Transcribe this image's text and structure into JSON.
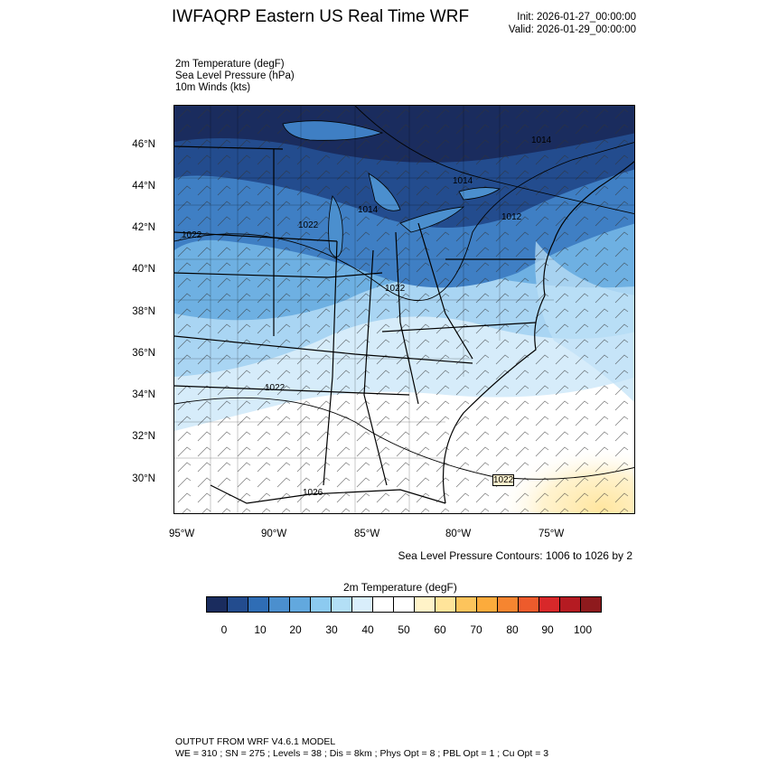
{
  "header": {
    "title": "IWFAQRP Eastern US Real Time WRF",
    "init": "Init: 2026-01-27_00:00:00",
    "valid": "Valid: 2026-01-29_00:00:00"
  },
  "fields": [
    "2m Temperature   (degF)",
    "Sea Level Pressure   (hPa)",
    "10m Winds   (kts)"
  ],
  "map": {
    "lat_labels": [
      "46°N",
      "44°N",
      "42°N",
      "40°N",
      "38°N",
      "36°N",
      "34°N",
      "32°N",
      "30°N"
    ],
    "lon_labels": [
      "95°W",
      "90°W",
      "85°W",
      "80°W",
      "75°W"
    ],
    "pressure_labels": [
      "1014",
      "1014",
      "1014",
      "1012",
      "1022",
      "1022",
      "1022",
      "1026",
      "1022",
      "1022"
    ]
  },
  "contour_note": "Sea Level Pressure Contours: 1006 to 1026 by 2",
  "colorbar": {
    "title": "2m Temperature  (degF)",
    "labels": [
      "0",
      "10",
      "20",
      "30",
      "40",
      "50",
      "60",
      "70",
      "80",
      "90",
      "100"
    ],
    "colors": [
      "#1a2c5e",
      "#234c8e",
      "#2f6db5",
      "#4b8fce",
      "#62a8de",
      "#8ccaf0",
      "#b3dff6",
      "#d9eefb",
      "#ffffff",
      "#ffffff",
      "#fff3c8",
      "#ffe49a",
      "#fdc45c",
      "#fcab3c",
      "#f68530",
      "#ed5b2c",
      "#d8282a",
      "#b51b22",
      "#8e1a1d"
    ]
  },
  "footer": {
    "line1": "OUTPUT FROM WRF V4.6.1 MODEL",
    "line2": "WE = 310 ; SN = 275 ; Levels = 38 ; Dis = 8km ; Phys Opt = 8 ; PBL Opt = 1 ; Cu Opt = 3"
  }
}
